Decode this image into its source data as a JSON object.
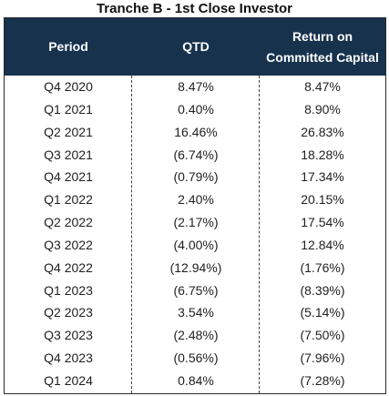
{
  "title": "Tranche B - 1st Close Investor",
  "header": {
    "period": "Period",
    "qtd": "QTD",
    "return_line1": "Return on",
    "return_line2": "Committed Capital"
  },
  "colors": {
    "header_bg": "#17324d",
    "header_text": "#ffffff"
  },
  "rows": [
    {
      "period": "Q4 2020",
      "qtd": "8.47%",
      "return": "8.47%"
    },
    {
      "period": "Q1 2021",
      "qtd": "0.40%",
      "return": "8.90%"
    },
    {
      "period": "Q2 2021",
      "qtd": "16.46%",
      "return": "26.83%"
    },
    {
      "period": "Q3 2021",
      "qtd": "(6.74%)",
      "return": "18.28%"
    },
    {
      "period": "Q4 2021",
      "qtd": "(0.79%)",
      "return": "17.34%"
    },
    {
      "period": "Q1 2022",
      "qtd": "2.40%",
      "return": "20.15%"
    },
    {
      "period": "Q2 2022",
      "qtd": "(2.17%)",
      "return": "17.54%"
    },
    {
      "period": "Q3 2022",
      "qtd": "(4.00%)",
      "return": "12.84%"
    },
    {
      "period": "Q4 2022",
      "qtd": "(12.94%)",
      "return": "(1.76%)"
    },
    {
      "period": "Q1 2023",
      "qtd": "(6.75%)",
      "return": "(8.39%)"
    },
    {
      "period": "Q2 2023",
      "qtd": "3.54%",
      "return": "(5.14%)"
    },
    {
      "period": "Q3 2023",
      "qtd": "(2.48%)",
      "return": "(7.50%)"
    },
    {
      "period": "Q4 2023",
      "qtd": "(0.56%)",
      "return": "(7.96%)"
    },
    {
      "period": "Q1 2024",
      "qtd": "0.84%",
      "return": "(7.28%)"
    }
  ]
}
